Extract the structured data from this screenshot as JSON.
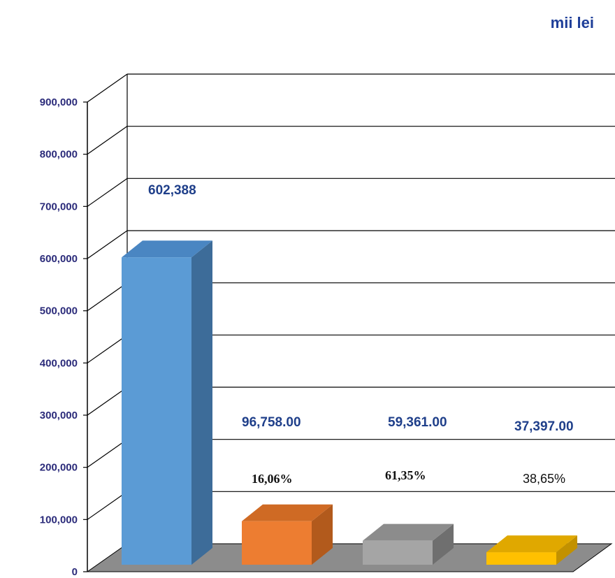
{
  "chart_data": {
    "type": "bar",
    "unit_label": "mii lei",
    "y_ticks": [
      "0",
      "100,000",
      "200,000",
      "300,000",
      "400,000",
      "500,000",
      "600,000",
      "700,000",
      "800,000",
      "900,000"
    ],
    "ylim": [
      0,
      900000
    ],
    "grid": true,
    "values": [
      602388,
      96758,
      59361,
      37397
    ],
    "value_labels": [
      "602,388",
      "96,758.00",
      "59,361.00",
      "37,397.00"
    ],
    "percent_labels": [
      "",
      "16,06%",
      "61,35%",
      "38,65%"
    ],
    "colors": {
      "bar_front": [
        "#5b9bd5",
        "#ed7d31",
        "#a5a5a5",
        "#ffc000"
      ],
      "bar_side": [
        "#3d6c99",
        "#b25a1c",
        "#6f6f6f",
        "#c29100"
      ],
      "bar_top": [
        "#4a86c2",
        "#cf6a24",
        "#8c8c8c",
        "#e0a800"
      ],
      "floor": "#8c8c8c",
      "gridline": "#000000"
    }
  }
}
